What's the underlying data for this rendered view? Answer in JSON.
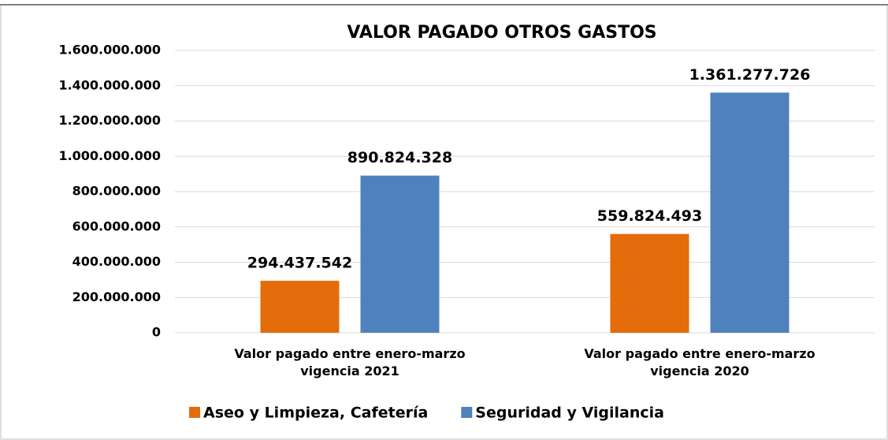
{
  "chart_data": {
    "type": "bar",
    "title": "VALOR PAGADO OTROS GASTOS",
    "categories": [
      "Valor pagado entre enero-marzo vigencia 2021",
      "Valor pagado entre enero-marzo vigencia 2020"
    ],
    "series": [
      {
        "name": "Aseo y Limpieza, Cafetería",
        "color": "#e46c0a",
        "values": [
          294437542,
          559824493
        ],
        "value_labels": [
          "294.437.542",
          "559.824.493"
        ]
      },
      {
        "name": "Seguridad y Vigilancia",
        "color": "#4f81bd",
        "values": [
          890824328,
          1361277726
        ],
        "value_labels": [
          "890.824.328",
          "1.361.277.726"
        ]
      }
    ],
    "ylim": [
      0,
      1600000000
    ],
    "yticks": [
      0,
      {
        "value": 200000000,
        "label": "200.000.000"
      },
      {
        "value": 400000000,
        "label": "400.000.000"
      },
      {
        "value": 600000000,
        "label": "600.000.000"
      },
      {
        "value": 800000000,
        "label": "800.000.000"
      },
      {
        "value": 1000000000,
        "label": "1.000.000.000"
      },
      {
        "value": 1200000000,
        "label": "1.200.000.000"
      },
      {
        "value": 1400000000,
        "label": "1.400.000.000"
      },
      {
        "value": 1600000000,
        "label": "1.600.000.000"
      }
    ],
    "grid": true,
    "legend": "bottom"
  }
}
